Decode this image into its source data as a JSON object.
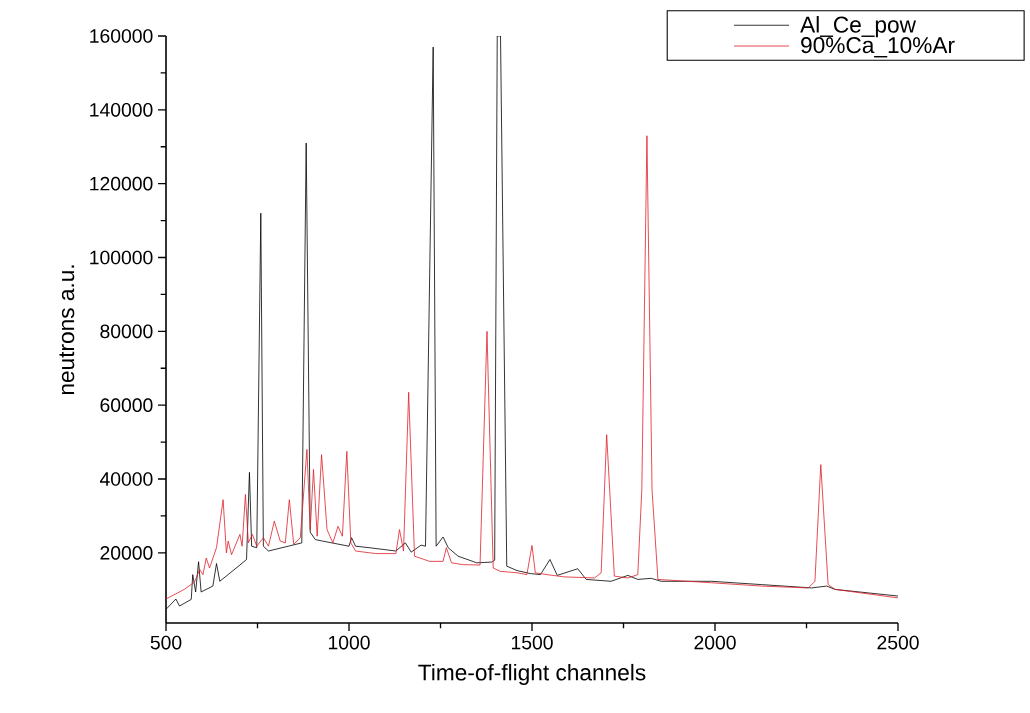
{
  "chart_data": {
    "type": "line",
    "xlabel": "Time-of-flight channels",
    "ylabel": "neutrons a.u.",
    "xlim": [
      500,
      2500
    ],
    "ylim": [
      1000,
      160000
    ],
    "xticks": [
      500,
      1000,
      1500,
      2000,
      2500
    ],
    "yticks": [
      20000,
      40000,
      60000,
      80000,
      100000,
      120000,
      140000,
      160000
    ],
    "grid": false,
    "legend": "top right",
    "marker": "none",
    "line_style": "solid",
    "series": [
      {
        "name": "Al_Ce_pow",
        "color": "#000000",
        "x": [
          500,
          527,
          537,
          569,
          573,
          581,
          589,
          596,
          628,
          638,
          647,
          702,
          720,
          728,
          734,
          748,
          759,
          766,
          780,
          871,
          883,
          894,
          908,
          927,
          1000,
          1007,
          1018,
          1055,
          1128,
          1154,
          1170,
          1197,
          1209,
          1230,
          1238,
          1257,
          1271,
          1298,
          1349,
          1390,
          1398,
          1405,
          1414,
          1431,
          1459,
          1495,
          1523,
          1549,
          1569,
          1625,
          1648,
          1716,
          1762,
          1789,
          1826,
          1853,
          1990,
          2127,
          2264,
          2305,
          2328,
          2500
        ],
        "values": [
          4700,
          7500,
          5600,
          7400,
          14100,
          9400,
          17600,
          9400,
          11000,
          17100,
          12300,
          16700,
          18200,
          41800,
          21800,
          21400,
          112000,
          21800,
          20500,
          22700,
          131000,
          25600,
          23600,
          23200,
          21800,
          24100,
          21800,
          21400,
          20500,
          22700,
          20200,
          22100,
          21800,
          157000,
          21800,
          24300,
          21400,
          19100,
          17300,
          17500,
          18000,
          160000,
          160000,
          16400,
          15200,
          14400,
          14100,
          18200,
          13900,
          15700,
          12800,
          12300,
          13900,
          12800,
          13100,
          12300,
          12300,
          11400,
          10500,
          11000,
          10100,
          8300
        ]
      },
      {
        "name": "90%Ca_10%Ar",
        "color": "#e0202a",
        "x": [
          500,
          550,
          578,
          592,
          601,
          610,
          619,
          638,
          656,
          665,
          670,
          679,
          702,
          708,
          717,
          725,
          736,
          748,
          766,
          780,
          796,
          812,
          826,
          837,
          849,
          867,
          885,
          894,
          903,
          913,
          925,
          940,
          956,
          970,
          982,
          994,
          1005,
          1018,
          1073,
          1128,
          1138,
          1149,
          1163,
          1179,
          1220,
          1257,
          1266,
          1280,
          1312,
          1358,
          1377,
          1394,
          1413,
          1459,
          1486,
          1500,
          1509,
          1541,
          1587,
          1671,
          1689,
          1704,
          1725,
          1762,
          1789,
          1800,
          1814,
          1828,
          1844,
          1990,
          2127,
          2255,
          2273,
          2289,
          2309,
          2328,
          2500
        ],
        "values": [
          7500,
          10100,
          12100,
          15500,
          14100,
          18600,
          15900,
          21400,
          34400,
          20000,
          23200,
          19500,
          25000,
          21800,
          35800,
          22700,
          25000,
          21800,
          24100,
          21800,
          28600,
          23200,
          22700,
          34400,
          22300,
          24100,
          48000,
          26300,
          42600,
          24500,
          46600,
          26300,
          22700,
          27200,
          24500,
          47500,
          22700,
          20500,
          19800,
          19800,
          26300,
          20500,
          63500,
          19100,
          17700,
          17700,
          21400,
          17300,
          16800,
          16700,
          80000,
          15900,
          15000,
          14600,
          14100,
          22000,
          14600,
          14100,
          13500,
          13200,
          14600,
          52000,
          13700,
          13200,
          14100,
          37000,
          133000,
          37000,
          12800,
          11900,
          11000,
          10500,
          12300,
          43900,
          11400,
          10100,
          7800
        ]
      }
    ]
  }
}
